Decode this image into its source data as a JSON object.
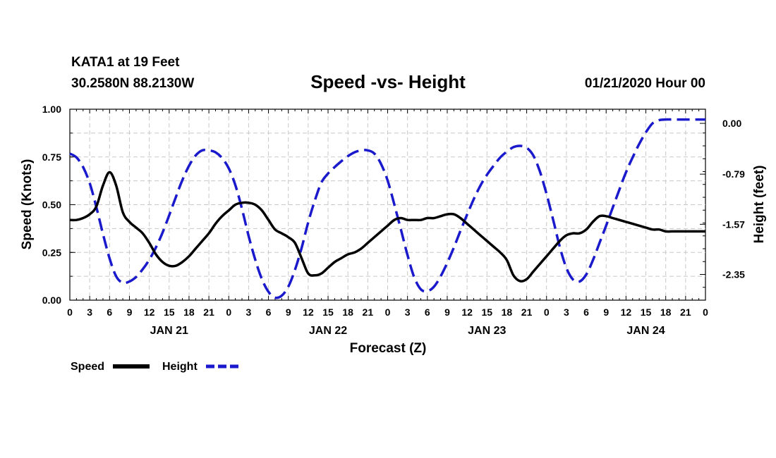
{
  "header": {
    "station": "KATA1 at 19 Feet",
    "coords": "30.2580N 88.2130W",
    "title": "Speed -vs- Height",
    "datetime": "01/21/2020 Hour 00"
  },
  "legend": {
    "speed_label": "Speed",
    "height_label": "Height"
  },
  "colors": {
    "speed": "#000000",
    "height": "#1a1acc",
    "grid": "#c8c8c8"
  },
  "chart_data": {
    "type": "line",
    "title": "Speed -vs- Height",
    "xlabel": "Forecast (Z)",
    "ylabel": "Speed (Knots)",
    "y2label": "Height (feet)",
    "x_ticks": [
      "0",
      "3",
      "6",
      "9",
      "12",
      "15",
      "18",
      "21",
      "0",
      "3",
      "6",
      "9",
      "12",
      "15",
      "18",
      "21",
      "0",
      "3",
      "6",
      "9",
      "12",
      "15",
      "18",
      "21",
      "0",
      "3",
      "6",
      "9",
      "12",
      "15",
      "18",
      "21",
      "0"
    ],
    "day_labels": [
      "JAN 21",
      "JAN 22",
      "JAN 23",
      "JAN 24"
    ],
    "day_label_hours": [
      15,
      39,
      63,
      87
    ],
    "xlim": [
      0,
      96
    ],
    "ylim": [
      0,
      1
    ],
    "y_ticks": [
      "0.00",
      "0.25",
      "0.50",
      "0.75",
      "1.00"
    ],
    "y2lim": [
      -2.75,
      0.22
    ],
    "y2_ticks": [
      {
        "value": 0.0,
        "label": "0.00"
      },
      {
        "value": -0.79,
        "label": "-0.79"
      },
      {
        "value": -1.57,
        "label": "-1.57"
      },
      {
        "value": -2.35,
        "label": "-2.35"
      }
    ],
    "series": [
      {
        "name": "Speed",
        "axis": "left",
        "style": "solid",
        "x": [
          0,
          1,
          2,
          3,
          4,
          5,
          6,
          7,
          8,
          9,
          10,
          11,
          12,
          13,
          14,
          15,
          16,
          17,
          18,
          19,
          20,
          21,
          22,
          23,
          24,
          25,
          26,
          27,
          28,
          29,
          30,
          31,
          32,
          33,
          34,
          35,
          36,
          37,
          38,
          39,
          40,
          41,
          42,
          43,
          44,
          45,
          46,
          47,
          48,
          49,
          50,
          51,
          52,
          53,
          54,
          55,
          56,
          57,
          58,
          59,
          60,
          61,
          62,
          63,
          64,
          65,
          66,
          67,
          68,
          69,
          70,
          71,
          72,
          73,
          74,
          75,
          76,
          77,
          78,
          79,
          80,
          81,
          82,
          83,
          84,
          85,
          86,
          87,
          88,
          89,
          90,
          91,
          92,
          93,
          94,
          95,
          96
        ],
        "values": [
          0.42,
          0.42,
          0.43,
          0.45,
          0.49,
          0.6,
          0.67,
          0.6,
          0.46,
          0.41,
          0.38,
          0.35,
          0.3,
          0.24,
          0.2,
          0.18,
          0.18,
          0.2,
          0.23,
          0.27,
          0.31,
          0.35,
          0.4,
          0.44,
          0.47,
          0.5,
          0.51,
          0.51,
          0.5,
          0.47,
          0.42,
          0.37,
          0.35,
          0.33,
          0.3,
          0.22,
          0.14,
          0.13,
          0.14,
          0.17,
          0.2,
          0.22,
          0.24,
          0.25,
          0.27,
          0.3,
          0.33,
          0.36,
          0.39,
          0.42,
          0.43,
          0.42,
          0.42,
          0.42,
          0.43,
          0.43,
          0.44,
          0.45,
          0.45,
          0.43,
          0.4,
          0.37,
          0.34,
          0.31,
          0.28,
          0.25,
          0.21,
          0.13,
          0.1,
          0.11,
          0.15,
          0.19,
          0.23,
          0.27,
          0.31,
          0.34,
          0.35,
          0.35,
          0.37,
          0.41,
          0.44,
          0.44,
          0.43,
          0.42,
          0.41,
          0.4,
          0.39,
          0.38,
          0.37,
          0.37,
          0.36,
          0.36,
          0.36,
          0.36,
          0.36,
          0.36,
          0.36
        ]
      },
      {
        "name": "Height",
        "axis": "right",
        "style": "dashed",
        "x": [
          0,
          1,
          2,
          3,
          4,
          5,
          6,
          7,
          8,
          9,
          10,
          11,
          12,
          13,
          14,
          15,
          16,
          17,
          18,
          19,
          20,
          21,
          22,
          23,
          24,
          25,
          26,
          27,
          28,
          29,
          30,
          31,
          32,
          33,
          34,
          35,
          36,
          37,
          38,
          39,
          40,
          41,
          42,
          43,
          44,
          45,
          46,
          47,
          48,
          49,
          50,
          51,
          52,
          53,
          54,
          55,
          56,
          57,
          58,
          59,
          60,
          61,
          62,
          63,
          64,
          65,
          66,
          67,
          68,
          69,
          70,
          71,
          72,
          73,
          74,
          75,
          76,
          77,
          78,
          79,
          80,
          81,
          82,
          83,
          84,
          85,
          86,
          87,
          88,
          89,
          90,
          91,
          92,
          93,
          94,
          95,
          96
        ],
        "values": [
          -0.47,
          -0.53,
          -0.68,
          -0.93,
          -1.3,
          -1.72,
          -2.1,
          -2.38,
          -2.48,
          -2.46,
          -2.39,
          -2.27,
          -2.12,
          -1.93,
          -1.7,
          -1.43,
          -1.15,
          -0.88,
          -0.66,
          -0.5,
          -0.42,
          -0.42,
          -0.45,
          -0.54,
          -0.7,
          -0.96,
          -1.33,
          -1.75,
          -2.12,
          -2.42,
          -2.62,
          -2.71,
          -2.68,
          -2.54,
          -2.28,
          -1.94,
          -1.54,
          -1.2,
          -0.92,
          -0.78,
          -0.68,
          -0.59,
          -0.51,
          -0.45,
          -0.42,
          -0.42,
          -0.47,
          -0.63,
          -0.89,
          -1.26,
          -1.65,
          -2.05,
          -2.39,
          -2.58,
          -2.61,
          -2.54,
          -2.38,
          -2.17,
          -1.93,
          -1.67,
          -1.42,
          -1.18,
          -0.97,
          -0.8,
          -0.66,
          -0.53,
          -0.44,
          -0.37,
          -0.35,
          -0.38,
          -0.5,
          -0.75,
          -1.1,
          -1.5,
          -1.92,
          -2.25,
          -2.43,
          -2.46,
          -2.35,
          -2.13,
          -1.86,
          -1.59,
          -1.31,
          -1.03,
          -0.76,
          -0.53,
          -0.32,
          -0.14,
          0.0,
          0.05,
          0.06,
          0.06,
          0.06,
          0.06,
          0.06,
          0.06,
          0.06
        ]
      }
    ]
  }
}
